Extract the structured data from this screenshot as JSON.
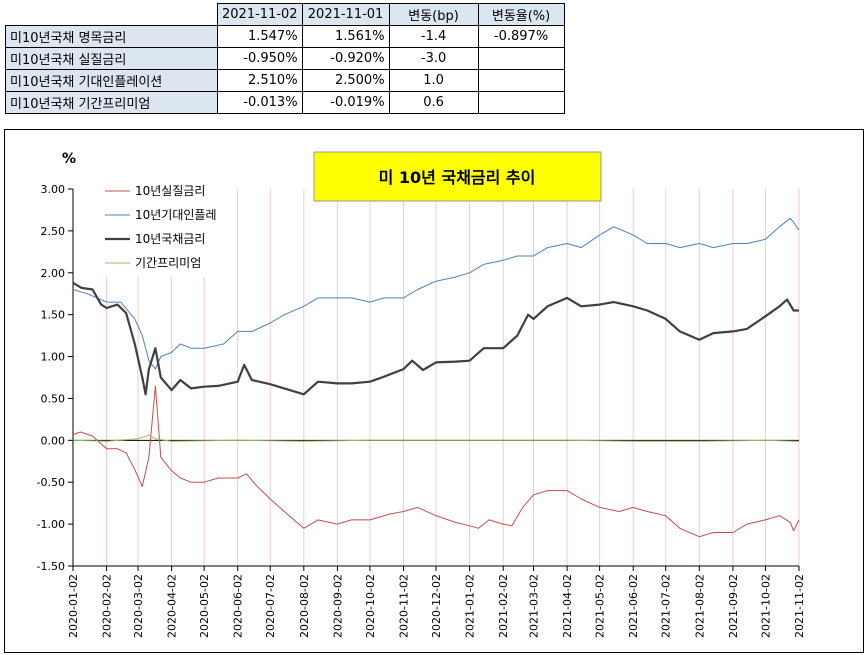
{
  "table": {
    "headers": [
      "",
      "2021-11-02",
      "2021-11-01",
      "변동(bp)",
      "변동율(%)"
    ],
    "rows": [
      [
        "미10년국채 명목금리",
        "1.547%",
        "1.561%",
        "-1.4",
        "-0.897%"
      ],
      [
        "미10년국채 실질금리",
        "-0.950%",
        "-0.920%",
        "-3.0",
        ""
      ],
      [
        "미10년국채 기대인플레이션",
        "2.510%",
        "2.500%",
        "1.0",
        ""
      ],
      [
        "미10년국채 기간프리미엄",
        "-0.013%",
        "-0.019%",
        "0.6",
        ""
      ]
    ]
  },
  "colors": {
    "real": "#c0504d",
    "inflation": "#4f81bd",
    "nominal": "#404040",
    "premium": "#9bbb59",
    "title_bg": "#ffff00",
    "header_bg": "#dce6f1",
    "vgrid": "#f4c7d4"
  },
  "chart_data": {
    "type": "line",
    "title": "미 10년 국채금리 추이",
    "ylabel": "%",
    "ylim": [
      -1.5,
      3.0
    ],
    "yticks": [
      "3.00",
      "2.50",
      "2.00",
      "1.50",
      "1.00",
      "0.50",
      "0.00",
      "-0.50",
      "-1.00",
      "-1.50"
    ],
    "xticks": [
      "2020-01-02",
      "2020-02-02",
      "2020-03-02",
      "2020-04-02",
      "2020-05-02",
      "2020-06-02",
      "2020-07-02",
      "2020-08-02",
      "2020-09-02",
      "2020-10-02",
      "2020-11-02",
      "2020-12-02",
      "2021-01-02",
      "2021-02-02",
      "2021-03-02",
      "2021-04-02",
      "2021-05-02",
      "2021-06-02",
      "2021-07-02",
      "2021-08-02",
      "2021-09-02",
      "2021-10-02",
      "2021-11-02"
    ],
    "grid": "vertical",
    "legend_position": "top-left",
    "series": [
      {
        "name": "10년실질금리",
        "key": "real",
        "points": [
          [
            "2020-01-02",
            0.07
          ],
          [
            "2020-01-09",
            0.1
          ],
          [
            "2020-01-20",
            0.05
          ],
          [
            "2020-02-02",
            -0.1
          ],
          [
            "2020-02-12",
            -0.1
          ],
          [
            "2020-02-20",
            -0.15
          ],
          [
            "2020-02-28",
            -0.35
          ],
          [
            "2020-03-06",
            -0.55
          ],
          [
            "2020-03-12",
            -0.2
          ],
          [
            "2020-03-18",
            0.65
          ],
          [
            "2020-03-23",
            -0.2
          ],
          [
            "2020-04-01",
            -0.35
          ],
          [
            "2020-04-10",
            -0.45
          ],
          [
            "2020-04-20",
            -0.5
          ],
          [
            "2020-05-02",
            -0.5
          ],
          [
            "2020-05-15",
            -0.45
          ],
          [
            "2020-06-02",
            -0.45
          ],
          [
            "2020-06-10",
            -0.4
          ],
          [
            "2020-06-20",
            -0.55
          ],
          [
            "2020-07-02",
            -0.7
          ],
          [
            "2020-07-15",
            -0.85
          ],
          [
            "2020-08-02",
            -1.05
          ],
          [
            "2020-08-15",
            -0.95
          ],
          [
            "2020-09-02",
            -1.0
          ],
          [
            "2020-09-15",
            -0.95
          ],
          [
            "2020-10-02",
            -0.95
          ],
          [
            "2020-10-20",
            -0.88
          ],
          [
            "2020-11-02",
            -0.85
          ],
          [
            "2020-11-15",
            -0.8
          ],
          [
            "2020-12-02",
            -0.9
          ],
          [
            "2020-12-20",
            -0.98
          ],
          [
            "2021-01-02",
            -1.02
          ],
          [
            "2021-01-10",
            -1.05
          ],
          [
            "2021-01-20",
            -0.95
          ],
          [
            "2021-02-02",
            -1.0
          ],
          [
            "2021-02-10",
            -1.02
          ],
          [
            "2021-02-20",
            -0.8
          ],
          [
            "2021-03-02",
            -0.65
          ],
          [
            "2021-03-15",
            -0.6
          ],
          [
            "2021-04-02",
            -0.6
          ],
          [
            "2021-04-15",
            -0.7
          ],
          [
            "2021-05-02",
            -0.8
          ],
          [
            "2021-05-20",
            -0.85
          ],
          [
            "2021-06-02",
            -0.8
          ],
          [
            "2021-06-15",
            -0.85
          ],
          [
            "2021-07-02",
            -0.9
          ],
          [
            "2021-07-15",
            -1.05
          ],
          [
            "2021-08-02",
            -1.15
          ],
          [
            "2021-08-15",
            -1.1
          ],
          [
            "2021-09-02",
            -1.1
          ],
          [
            "2021-09-15",
            -1.0
          ],
          [
            "2021-10-02",
            -0.95
          ],
          [
            "2021-10-15",
            -0.9
          ],
          [
            "2021-10-25",
            -0.98
          ],
          [
            "2021-10-28",
            -1.08
          ],
          [
            "2021-11-02",
            -0.95
          ]
        ]
      },
      {
        "name": "10년기대인플레",
        "key": "inflation",
        "points": [
          [
            "2020-01-02",
            1.8
          ],
          [
            "2020-01-15",
            1.75
          ],
          [
            "2020-02-02",
            1.65
          ],
          [
            "2020-02-15",
            1.65
          ],
          [
            "2020-02-28",
            1.45
          ],
          [
            "2020-03-06",
            1.25
          ],
          [
            "2020-03-12",
            0.95
          ],
          [
            "2020-03-18",
            0.85
          ],
          [
            "2020-03-23",
            1.0
          ],
          [
            "2020-04-02",
            1.05
          ],
          [
            "2020-04-10",
            1.15
          ],
          [
            "2020-04-20",
            1.1
          ],
          [
            "2020-05-02",
            1.1
          ],
          [
            "2020-05-20",
            1.15
          ],
          [
            "2020-06-02",
            1.3
          ],
          [
            "2020-06-15",
            1.3
          ],
          [
            "2020-07-02",
            1.4
          ],
          [
            "2020-07-15",
            1.5
          ],
          [
            "2020-08-02",
            1.6
          ],
          [
            "2020-08-15",
            1.7
          ],
          [
            "2020-09-02",
            1.7
          ],
          [
            "2020-09-15",
            1.7
          ],
          [
            "2020-10-02",
            1.65
          ],
          [
            "2020-10-15",
            1.7
          ],
          [
            "2020-11-02",
            1.7
          ],
          [
            "2020-11-15",
            1.8
          ],
          [
            "2020-12-02",
            1.9
          ],
          [
            "2020-12-20",
            1.95
          ],
          [
            "2021-01-02",
            2.0
          ],
          [
            "2021-01-15",
            2.1
          ],
          [
            "2021-02-02",
            2.15
          ],
          [
            "2021-02-15",
            2.2
          ],
          [
            "2021-03-02",
            2.2
          ],
          [
            "2021-03-15",
            2.3
          ],
          [
            "2021-04-02",
            2.35
          ],
          [
            "2021-04-15",
            2.3
          ],
          [
            "2021-05-02",
            2.45
          ],
          [
            "2021-05-15",
            2.55
          ],
          [
            "2021-06-02",
            2.45
          ],
          [
            "2021-06-15",
            2.35
          ],
          [
            "2021-07-02",
            2.35
          ],
          [
            "2021-07-15",
            2.3
          ],
          [
            "2021-08-02",
            2.35
          ],
          [
            "2021-08-15",
            2.3
          ],
          [
            "2021-09-02",
            2.35
          ],
          [
            "2021-09-15",
            2.35
          ],
          [
            "2021-10-02",
            2.4
          ],
          [
            "2021-10-15",
            2.55
          ],
          [
            "2021-10-25",
            2.65
          ],
          [
            "2021-10-28",
            2.6
          ],
          [
            "2021-11-02",
            2.51
          ]
        ]
      },
      {
        "name": "10년국채금리",
        "key": "nominal",
        "points": [
          [
            "2020-01-02",
            1.88
          ],
          [
            "2020-01-10",
            1.82
          ],
          [
            "2020-01-20",
            1.8
          ],
          [
            "2020-01-28",
            1.62
          ],
          [
            "2020-02-02",
            1.58
          ],
          [
            "2020-02-12",
            1.62
          ],
          [
            "2020-02-20",
            1.52
          ],
          [
            "2020-02-28",
            1.15
          ],
          [
            "2020-03-06",
            0.75
          ],
          [
            "2020-03-09",
            0.55
          ],
          [
            "2020-03-12",
            0.85
          ],
          [
            "2020-03-18",
            1.1
          ],
          [
            "2020-03-23",
            0.75
          ],
          [
            "2020-04-02",
            0.6
          ],
          [
            "2020-04-10",
            0.72
          ],
          [
            "2020-04-20",
            0.62
          ],
          [
            "2020-05-02",
            0.64
          ],
          [
            "2020-05-15",
            0.65
          ],
          [
            "2020-06-02",
            0.7
          ],
          [
            "2020-06-08",
            0.9
          ],
          [
            "2020-06-15",
            0.72
          ],
          [
            "2020-07-02",
            0.67
          ],
          [
            "2020-07-15",
            0.62
          ],
          [
            "2020-08-02",
            0.55
          ],
          [
            "2020-08-15",
            0.7
          ],
          [
            "2020-09-02",
            0.68
          ],
          [
            "2020-09-15",
            0.68
          ],
          [
            "2020-10-02",
            0.7
          ],
          [
            "2020-10-15",
            0.76
          ],
          [
            "2020-11-02",
            0.85
          ],
          [
            "2020-11-10",
            0.95
          ],
          [
            "2020-11-20",
            0.84
          ],
          [
            "2020-12-02",
            0.93
          ],
          [
            "2020-12-20",
            0.94
          ],
          [
            "2021-01-02",
            0.95
          ],
          [
            "2021-01-15",
            1.1
          ],
          [
            "2021-02-02",
            1.1
          ],
          [
            "2021-02-15",
            1.25
          ],
          [
            "2021-02-25",
            1.5
          ],
          [
            "2021-03-02",
            1.45
          ],
          [
            "2021-03-15",
            1.6
          ],
          [
            "2021-04-02",
            1.7
          ],
          [
            "2021-04-15",
            1.6
          ],
          [
            "2021-05-02",
            1.62
          ],
          [
            "2021-05-15",
            1.65
          ],
          [
            "2021-06-02",
            1.6
          ],
          [
            "2021-06-15",
            1.55
          ],
          [
            "2021-07-02",
            1.45
          ],
          [
            "2021-07-15",
            1.3
          ],
          [
            "2021-08-02",
            1.2
          ],
          [
            "2021-08-15",
            1.28
          ],
          [
            "2021-09-02",
            1.3
          ],
          [
            "2021-09-15",
            1.33
          ],
          [
            "2021-10-02",
            1.48
          ],
          [
            "2021-10-15",
            1.6
          ],
          [
            "2021-10-22",
            1.68
          ],
          [
            "2021-10-28",
            1.55
          ],
          [
            "2021-11-02",
            1.55
          ]
        ]
      },
      {
        "name": "기간프리미엄",
        "key": "premium",
        "points": [
          [
            "2020-01-02",
            0.0
          ],
          [
            "2020-02-02",
            -0.01
          ],
          [
            "2020-03-02",
            0.02
          ],
          [
            "2020-03-12",
            0.06
          ],
          [
            "2020-03-18",
            0.02
          ],
          [
            "2020-04-02",
            -0.01
          ],
          [
            "2020-06-02",
            0.0
          ],
          [
            "2020-08-02",
            -0.01
          ],
          [
            "2020-10-02",
            0.0
          ],
          [
            "2020-12-02",
            0.0
          ],
          [
            "2021-02-02",
            0.0
          ],
          [
            "2021-04-02",
            0.0
          ],
          [
            "2021-06-02",
            -0.01
          ],
          [
            "2021-08-02",
            -0.01
          ],
          [
            "2021-10-02",
            0.0
          ],
          [
            "2021-11-02",
            -0.013
          ]
        ]
      }
    ]
  }
}
